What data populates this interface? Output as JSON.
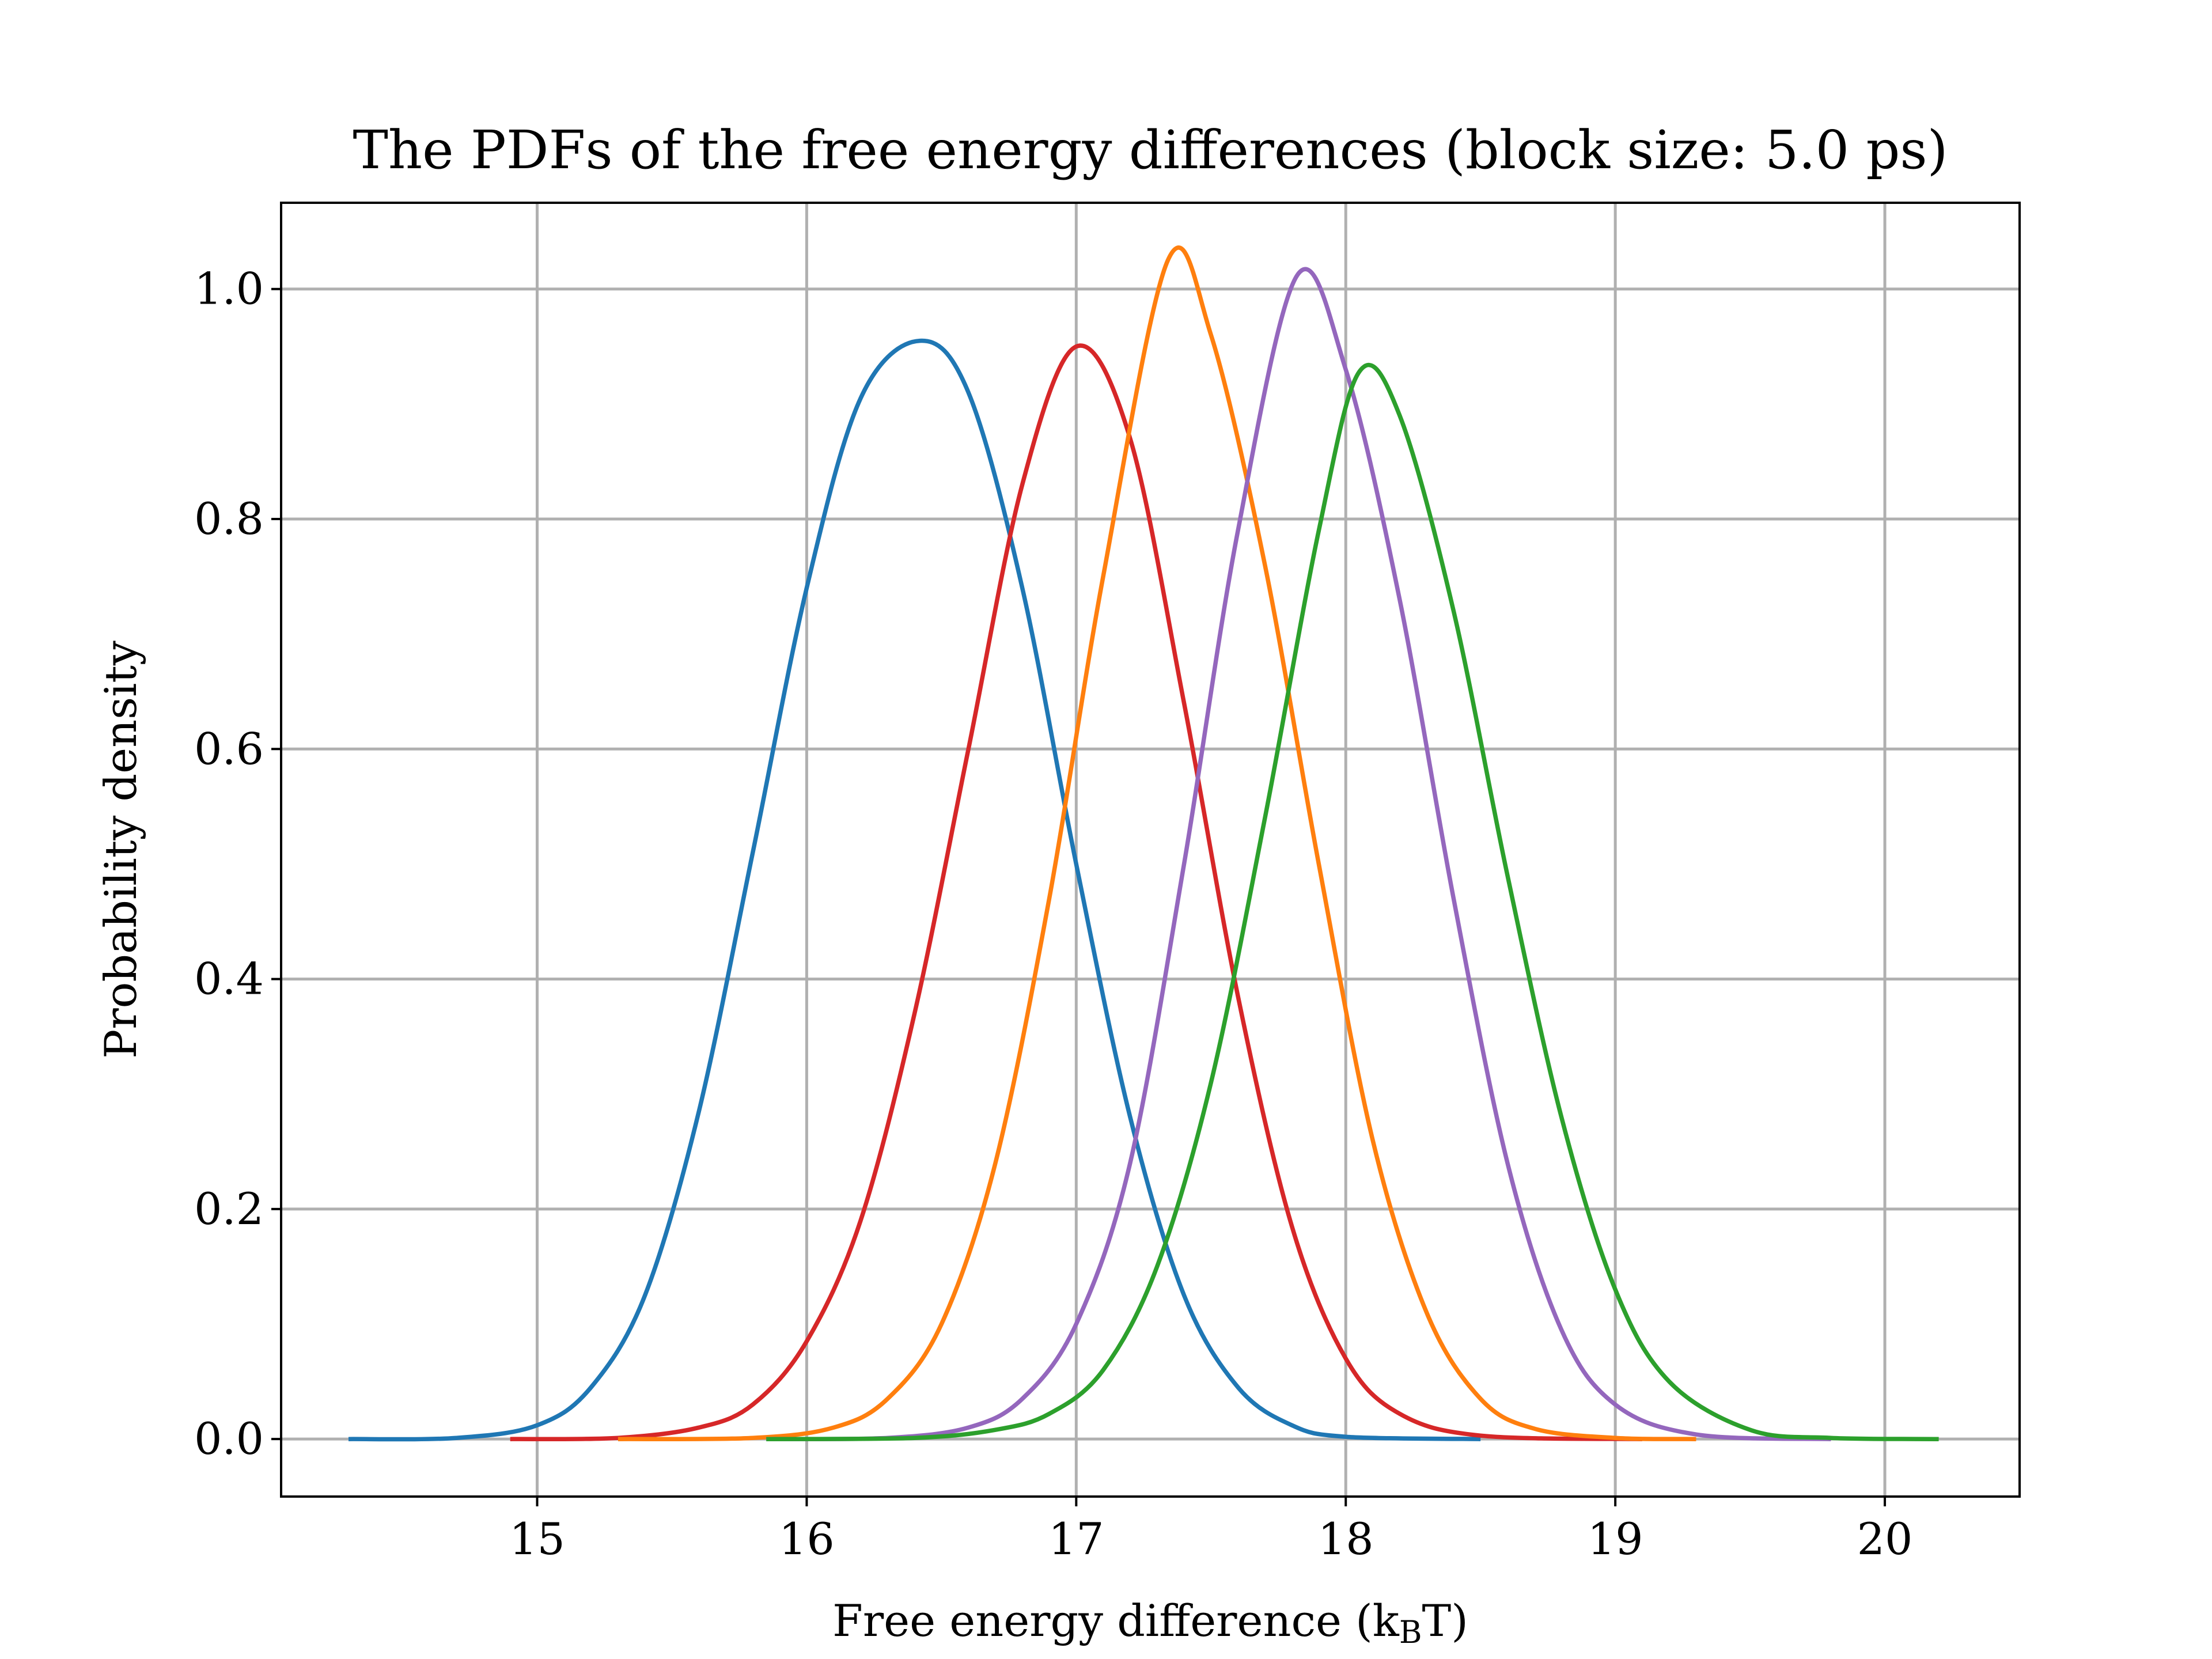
{
  "chart_data": {
    "type": "line",
    "title": "The PDFs of the free energy differences (block size: 5.0 ps)",
    "xlabel": {
      "main": "Free energy difference (k",
      "sub": "B",
      "tail": "T)"
    },
    "ylabel": "Probability density",
    "xlim": [
      14.05,
      20.5
    ],
    "ylim": [
      -0.05,
      1.075
    ],
    "xticks": [
      15,
      16,
      17,
      18,
      19,
      20
    ],
    "xtick_labels": [
      "15",
      "16",
      "17",
      "18",
      "19",
      "20"
    ],
    "yticks": [
      0.0,
      0.2,
      0.4,
      0.6,
      0.8,
      1.0
    ],
    "ytick_labels": [
      "0.0",
      "0.2",
      "0.4",
      "0.6",
      "0.8",
      "1.0"
    ],
    "grid": true,
    "series": [
      {
        "color": "#1f77b4",
        "x": [
          14.3,
          14.7,
          15.0,
          15.2,
          15.4,
          15.6,
          15.8,
          16.0,
          16.2,
          16.42,
          16.6,
          16.8,
          17.0,
          17.2,
          17.4,
          17.6,
          17.8,
          18.0,
          18.5
        ],
        "y": [
          0.0,
          0.001,
          0.012,
          0.045,
          0.125,
          0.285,
          0.51,
          0.74,
          0.905,
          0.955,
          0.91,
          0.74,
          0.5,
          0.28,
          0.125,
          0.045,
          0.012,
          0.002,
          0.0
        ]
      },
      {
        "color": "#d62728",
        "x": [
          14.9,
          15.3,
          15.6,
          15.8,
          16.0,
          16.2,
          16.4,
          16.6,
          16.8,
          17.0,
          17.2,
          17.4,
          17.6,
          17.8,
          18.0,
          18.2,
          18.5,
          19.1
        ],
        "y": [
          0.0,
          0.001,
          0.01,
          0.03,
          0.085,
          0.19,
          0.37,
          0.6,
          0.83,
          0.95,
          0.87,
          0.64,
          0.385,
          0.185,
          0.07,
          0.022,
          0.003,
          0.0
        ]
      },
      {
        "color": "#ff7f0e",
        "x": [
          15.3,
          15.8,
          16.1,
          16.3,
          16.5,
          16.7,
          16.9,
          17.1,
          17.34,
          17.5,
          17.7,
          17.9,
          18.1,
          18.3,
          18.5,
          18.7,
          19.0,
          19.3
        ],
        "y": [
          0.0,
          0.001,
          0.01,
          0.035,
          0.1,
          0.24,
          0.47,
          0.75,
          1.025,
          0.96,
          0.76,
          0.5,
          0.26,
          0.11,
          0.035,
          0.009,
          0.001,
          0.0
        ]
      },
      {
        "color": "#9467bd",
        "x": [
          15.85,
          16.3,
          16.6,
          16.8,
          17.0,
          17.2,
          17.4,
          17.6,
          17.82,
          18.0,
          18.2,
          18.4,
          18.6,
          18.8,
          19.0,
          19.3,
          19.8
        ],
        "y": [
          0.0,
          0.001,
          0.01,
          0.035,
          0.1,
          0.24,
          0.5,
          0.79,
          1.012,
          0.93,
          0.73,
          0.47,
          0.24,
          0.095,
          0.03,
          0.004,
          0.0
        ]
      },
      {
        "color": "#2ca02c",
        "x": [
          15.85,
          16.4,
          16.7,
          16.9,
          17.1,
          17.3,
          17.5,
          17.7,
          17.9,
          18.05,
          18.2,
          18.4,
          18.6,
          18.8,
          19.0,
          19.2,
          19.5,
          19.8,
          20.2
        ],
        "y": [
          0.0,
          0.001,
          0.008,
          0.022,
          0.06,
          0.15,
          0.31,
          0.54,
          0.79,
          0.928,
          0.89,
          0.72,
          0.49,
          0.28,
          0.13,
          0.05,
          0.008,
          0.001,
          0.0
        ]
      }
    ]
  }
}
